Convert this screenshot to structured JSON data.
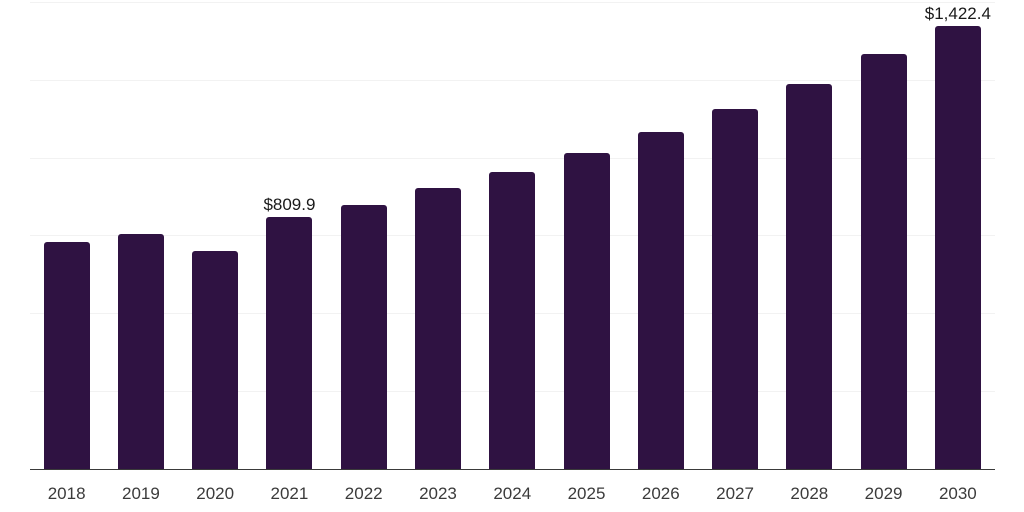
{
  "chart_data": {
    "type": "bar",
    "title": "",
    "xlabel": "",
    "ylabel": "",
    "categories": [
      "2018",
      "2019",
      "2020",
      "2021",
      "2022",
      "2023",
      "2024",
      "2025",
      "2026",
      "2027",
      "2028",
      "2029",
      "2030"
    ],
    "values": [
      728,
      755,
      700,
      809.9,
      848,
      901,
      955,
      1016,
      1081,
      1155,
      1235,
      1332,
      1422.4
    ],
    "point_labels": [
      "",
      "",
      "",
      "$809.9",
      "",
      "",
      "",
      "",
      "",
      "",
      "",
      "",
      "$1,422.4"
    ],
    "ylim": [
      0,
      1500
    ],
    "gridline_step": 250,
    "grid": true,
    "legend_position": "none",
    "colors": {
      "bar": "#2f1242",
      "gridline": "#f2f2f2",
      "axis_line": "#3a3a3a",
      "data_label_text": "#1a1a1a",
      "tick_label_text": "#3b3b3b",
      "background": "#ffffff"
    }
  }
}
